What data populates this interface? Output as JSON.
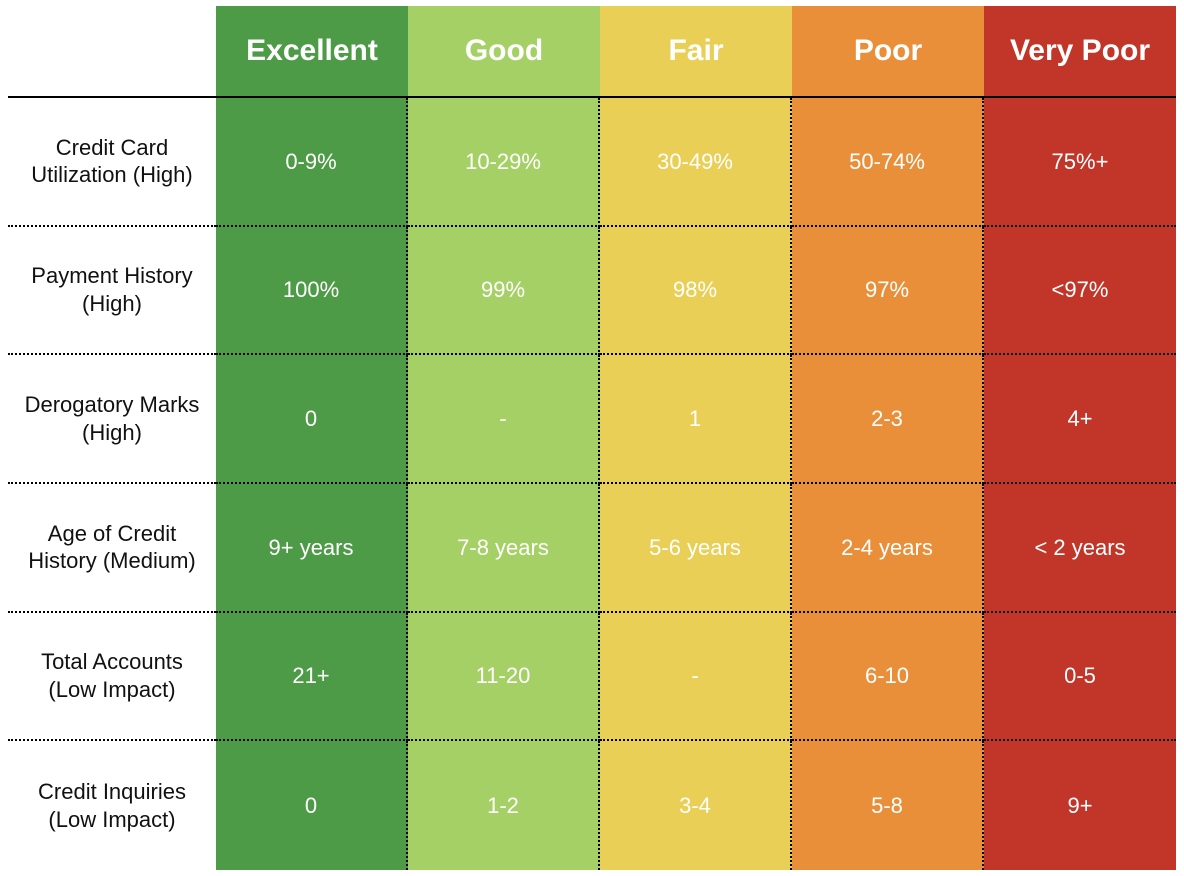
{
  "table": {
    "type": "table",
    "background_color": "#ffffff",
    "header_font": {
      "size_pt": 22,
      "weight": 700,
      "color": "#ffffff"
    },
    "rowlabel_font": {
      "size_pt": 16,
      "weight": 400,
      "color": "#111111"
    },
    "cell_font": {
      "size_pt": 16,
      "weight": 400,
      "color": "#ffffff"
    },
    "solid_divider_color": "#000000",
    "dotted_divider_color": "#000000",
    "tiers": [
      {
        "label": "Excellent",
        "bg": "#4e9b47"
      },
      {
        "label": "Good",
        "bg": "#a5d066"
      },
      {
        "label": "Fair",
        "bg": "#e9cf56"
      },
      {
        "label": "Poor",
        "bg": "#e98f3a"
      },
      {
        "label": "Very Poor",
        "bg": "#c2362a"
      }
    ],
    "rows": [
      {
        "label": "Credit Card Utilization (High)",
        "cells": [
          "0-9%",
          "10-29%",
          "30-49%",
          "50-74%",
          "75%+"
        ]
      },
      {
        "label": "Payment History (High)",
        "cells": [
          "100%",
          "99%",
          "98%",
          "97%",
          "<97%"
        ]
      },
      {
        "label": "Derogatory Marks (High)",
        "cells": [
          "0",
          "-",
          "1",
          "2-3",
          "4+"
        ]
      },
      {
        "label": "Age of Credit History (Medium)",
        "cells": [
          "9+ years",
          "7-8 years",
          "5-6 years",
          "2-4 years",
          "< 2 years"
        ]
      },
      {
        "label": "Total Accounts (Low Impact)",
        "cells": [
          "21+",
          "11-20",
          "-",
          "6-10",
          "0-5"
        ]
      },
      {
        "label": "Credit Inquiries (Low Impact)",
        "cells": [
          "0",
          "1-2",
          "3-4",
          "5-8",
          "9+"
        ]
      }
    ]
  }
}
